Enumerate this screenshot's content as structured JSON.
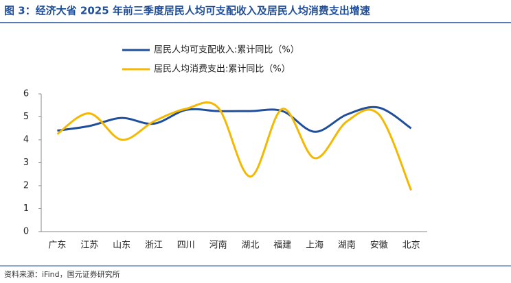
{
  "chart_data": {
    "type": "line",
    "title": "图 3：经济大省 2025 年前三季度居民人均可支配收入及居民人均消费支出增速",
    "source": "资料来源：iFind，国元证券研究所",
    "categories": [
      "广东",
      "江苏",
      "山东",
      "浙江",
      "四川",
      "河南",
      "湖北",
      "福建",
      "上海",
      "湖南",
      "安徽",
      "北京"
    ],
    "series": [
      {
        "name": "居民人均可支配收入:累计同比（%）",
        "color": "#1f4e9b",
        "values": [
          4.4,
          4.6,
          4.95,
          4.7,
          5.3,
          5.25,
          5.25,
          5.25,
          4.35,
          5.1,
          5.4,
          4.5
        ]
      },
      {
        "name": "居民人均消费支出:累计同比（%）",
        "color": "#f5b800",
        "values": [
          4.25,
          5.15,
          4.0,
          4.8,
          5.35,
          5.4,
          2.4,
          5.35,
          3.2,
          4.8,
          5.1,
          1.8
        ]
      }
    ],
    "ylim": [
      0,
      6
    ],
    "yticks": [
      0,
      1,
      2,
      3,
      4,
      5,
      6
    ],
    "smooth": true,
    "legend": "top"
  }
}
